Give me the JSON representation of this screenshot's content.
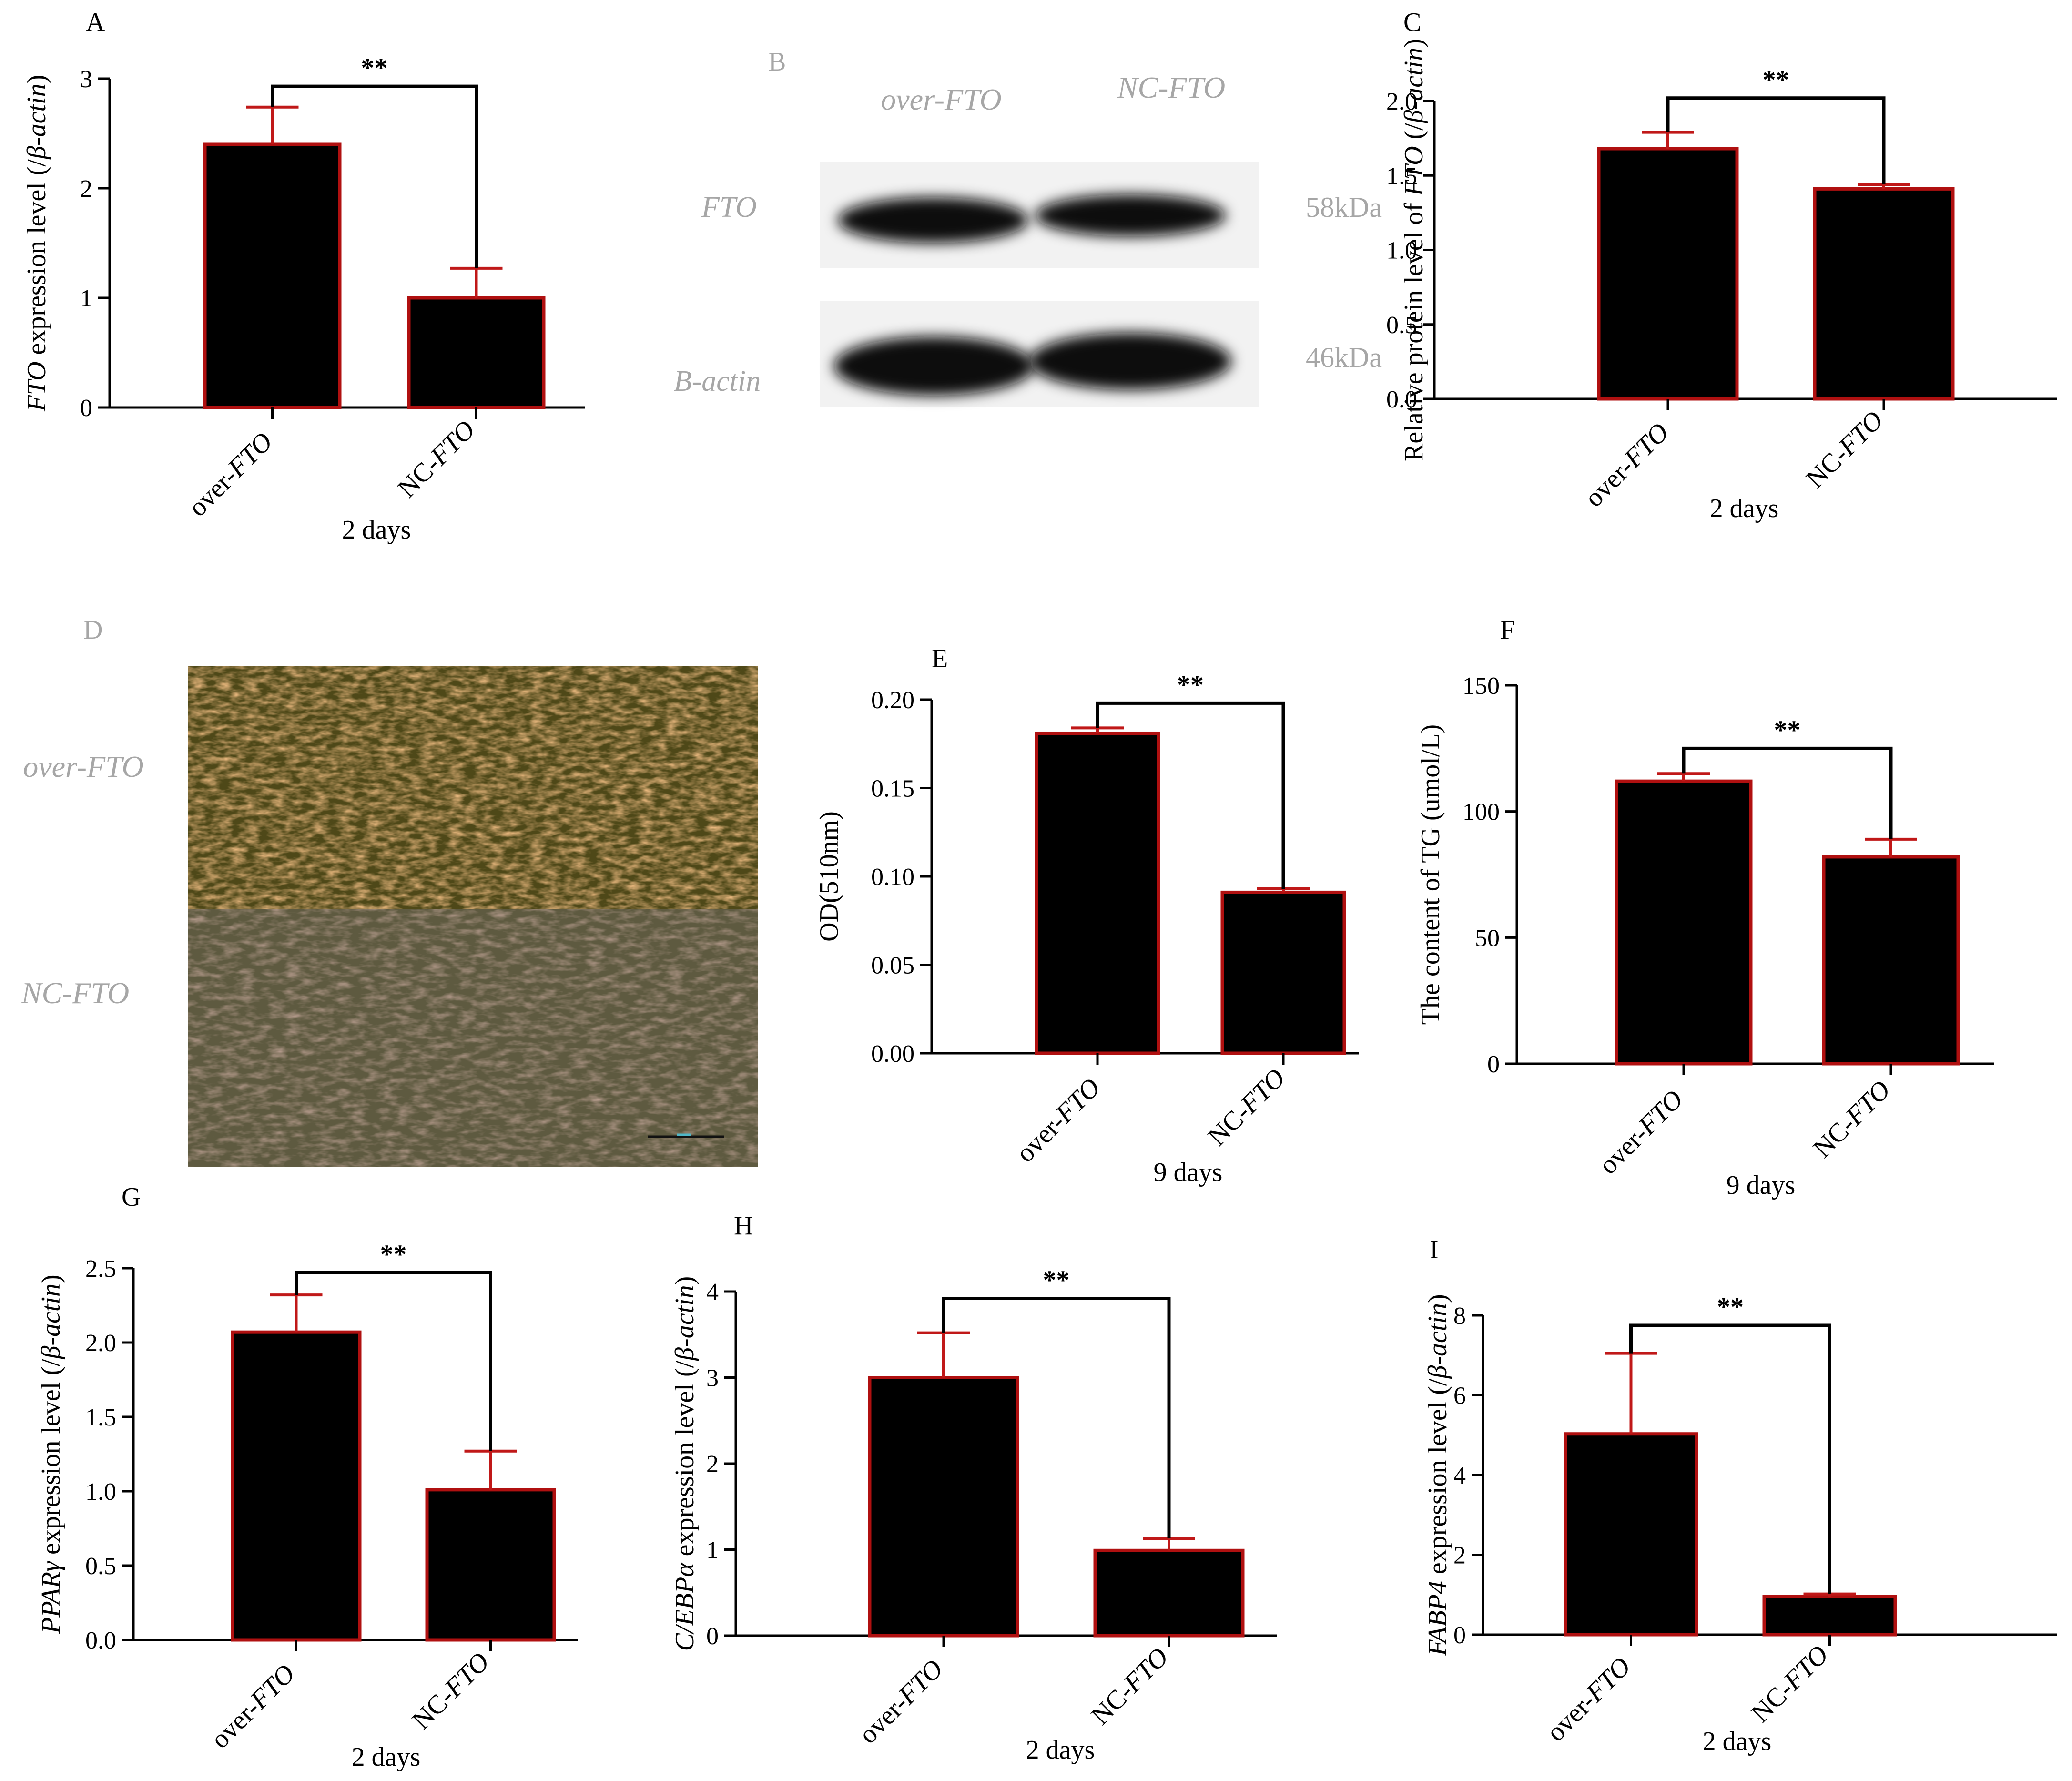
{
  "colors": {
    "bar_fill": "#000000",
    "bar_edge": "#b01010",
    "error_bar": "#c01818",
    "axis": "#000000",
    "muted_label": "#a6a6a6"
  },
  "blot": {
    "panel_letter": "B",
    "lanes": [
      "over-FTO",
      "NC-FTO"
    ],
    "bands": [
      {
        "name": "FTO",
        "size": "58kDa"
      },
      {
        "name": "B-actin",
        "size": "46kDa"
      }
    ]
  },
  "staining": {
    "panel_letter": "D",
    "rows": [
      "over-FTO",
      "NC-FTO"
    ]
  },
  "chart_data": [
    {
      "id": "A",
      "panel_letter": "A",
      "type": "bar",
      "categories": [
        [
          "over-",
          "FTO"
        ],
        [
          "NC-",
          "FTO"
        ]
      ],
      "values": [
        2.4,
        1.0
      ],
      "error_upper": [
        2.74,
        1.27
      ],
      "ylabel": [
        [
          "FTO",
          true
        ],
        [
          " expression level (/",
          false
        ],
        [
          "β-actin",
          true
        ],
        [
          ")",
          false
        ]
      ],
      "xlabel": "2 days",
      "ylim": [
        0,
        3
      ],
      "yticks": [
        "0",
        "1",
        "2",
        "3"
      ],
      "significance": "**",
      "bracket_y": 2.93
    },
    {
      "id": "C",
      "panel_letter": "C",
      "type": "bar",
      "categories": [
        [
          "over-",
          "FTO"
        ],
        [
          "NC-",
          "FTO"
        ]
      ],
      "values": [
        1.68,
        1.41
      ],
      "error_upper": [
        1.79,
        1.44
      ],
      "ylabel": [
        [
          "Relative protein level of ",
          false
        ],
        [
          "FTO",
          true
        ],
        [
          " (/",
          false
        ],
        [
          "β-actin",
          true
        ],
        [
          ")",
          false
        ]
      ],
      "xlabel": "2 days",
      "ylim": [
        0,
        2.0
      ],
      "yticks": [
        "0.0",
        "0.5",
        "1.0",
        "1.5",
        "2.0"
      ],
      "significance": "**",
      "bracket_y": 2.02
    },
    {
      "id": "E",
      "panel_letter": "E",
      "type": "bar",
      "categories": [
        [
          "over-",
          "FTO"
        ],
        [
          "NC-",
          "FTO"
        ]
      ],
      "values": [
        0.181,
        0.091
      ],
      "error_upper": [
        0.184,
        0.093
      ],
      "ylabel": [
        [
          "OD(510nm)",
          false
        ]
      ],
      "xlabel": "9 days",
      "ylim": [
        0,
        0.2
      ],
      "yticks": [
        "0.00",
        "0.05",
        "0.10",
        "0.15",
        "0.20"
      ],
      "significance": "**",
      "bracket_y": 0.198
    },
    {
      "id": "F",
      "panel_letter": "F",
      "type": "bar",
      "categories": [
        [
          "over-",
          "FTO"
        ],
        [
          "NC-",
          "FTO"
        ]
      ],
      "values": [
        112,
        82
      ],
      "error_upper": [
        115,
        89
      ],
      "ylabel": [
        [
          "The content of TG (umol/L)",
          false
        ]
      ],
      "xlabel": "9 days",
      "ylim": [
        0,
        150
      ],
      "yticks": [
        "0",
        "50",
        "100",
        "150"
      ],
      "significance": "**",
      "bracket_y": 125
    },
    {
      "id": "G",
      "panel_letter": "G",
      "type": "bar",
      "categories": [
        [
          "over-",
          "FTO"
        ],
        [
          "NC-",
          "FTO"
        ]
      ],
      "values": [
        2.07,
        1.01
      ],
      "error_upper": [
        2.32,
        1.27
      ],
      "ylabel": [
        [
          "PPARγ",
          true
        ],
        [
          " expression level (/",
          false
        ],
        [
          "β-actin",
          true
        ],
        [
          ")",
          false
        ]
      ],
      "xlabel": "2 days",
      "ylim": [
        0,
        2.5
      ],
      "yticks": [
        "0.0",
        "0.5",
        "1.0",
        "1.5",
        "2.0",
        "2.5"
      ],
      "significance": "**",
      "bracket_y": 2.47
    },
    {
      "id": "H",
      "panel_letter": "H",
      "type": "bar",
      "categories": [
        [
          "over-",
          "FTO"
        ],
        [
          "NC-",
          "FTO"
        ]
      ],
      "values": [
        3.0,
        0.99
      ],
      "error_upper": [
        3.52,
        1.13
      ],
      "ylabel": [
        [
          "C/EBPα",
          true
        ],
        [
          " expression level (/",
          false
        ],
        [
          "β-actin",
          true
        ],
        [
          ")",
          false
        ]
      ],
      "xlabel": "2 days",
      "ylim": [
        0,
        4
      ],
      "yticks": [
        "0",
        "1",
        "2",
        "3",
        "4"
      ],
      "significance": "**",
      "bracket_y": 3.92
    },
    {
      "id": "I",
      "panel_letter": "I",
      "type": "bar",
      "categories": [
        [
          "over-",
          "FTO"
        ],
        [
          "NC-",
          "FTO"
        ]
      ],
      "values": [
        5.03,
        0.95
      ],
      "error_upper": [
        7.05,
        1.02
      ],
      "ylabel": [
        [
          "FABP4",
          true
        ],
        [
          " expression level (/",
          false
        ],
        [
          "β-actin",
          true
        ],
        [
          ")",
          false
        ]
      ],
      "xlabel": "2 days",
      "ylim": [
        0,
        8
      ],
      "yticks": [
        "0",
        "2",
        "4",
        "6",
        "8"
      ],
      "significance": "**",
      "bracket_y": 7.75
    }
  ]
}
